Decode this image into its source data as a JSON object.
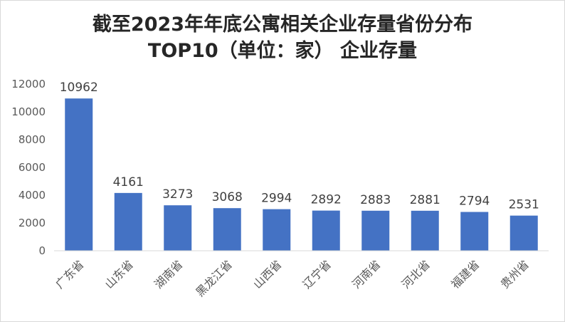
{
  "chart_data": {
    "type": "bar",
    "title_line1": "截至2023年年底公寓相关企业存量省份分布",
    "title_line2": "TOP10（单位：家） 企业存量",
    "categories": [
      "广东省",
      "山东省",
      "湖南省",
      "黑龙江省",
      "山西省",
      "辽宁省",
      "河南省",
      "河北省",
      "福建省",
      "贵州省"
    ],
    "values": [
      10962,
      4161,
      3273,
      3068,
      2994,
      2892,
      2883,
      2881,
      2794,
      2531
    ],
    "ylim": [
      0,
      12000
    ],
    "yticks": [
      0,
      2000,
      4000,
      6000,
      8000,
      10000,
      12000
    ],
    "grid": false,
    "legend": "none",
    "bar_color": "#4472c4",
    "axis_color": "#d9d9d9"
  }
}
